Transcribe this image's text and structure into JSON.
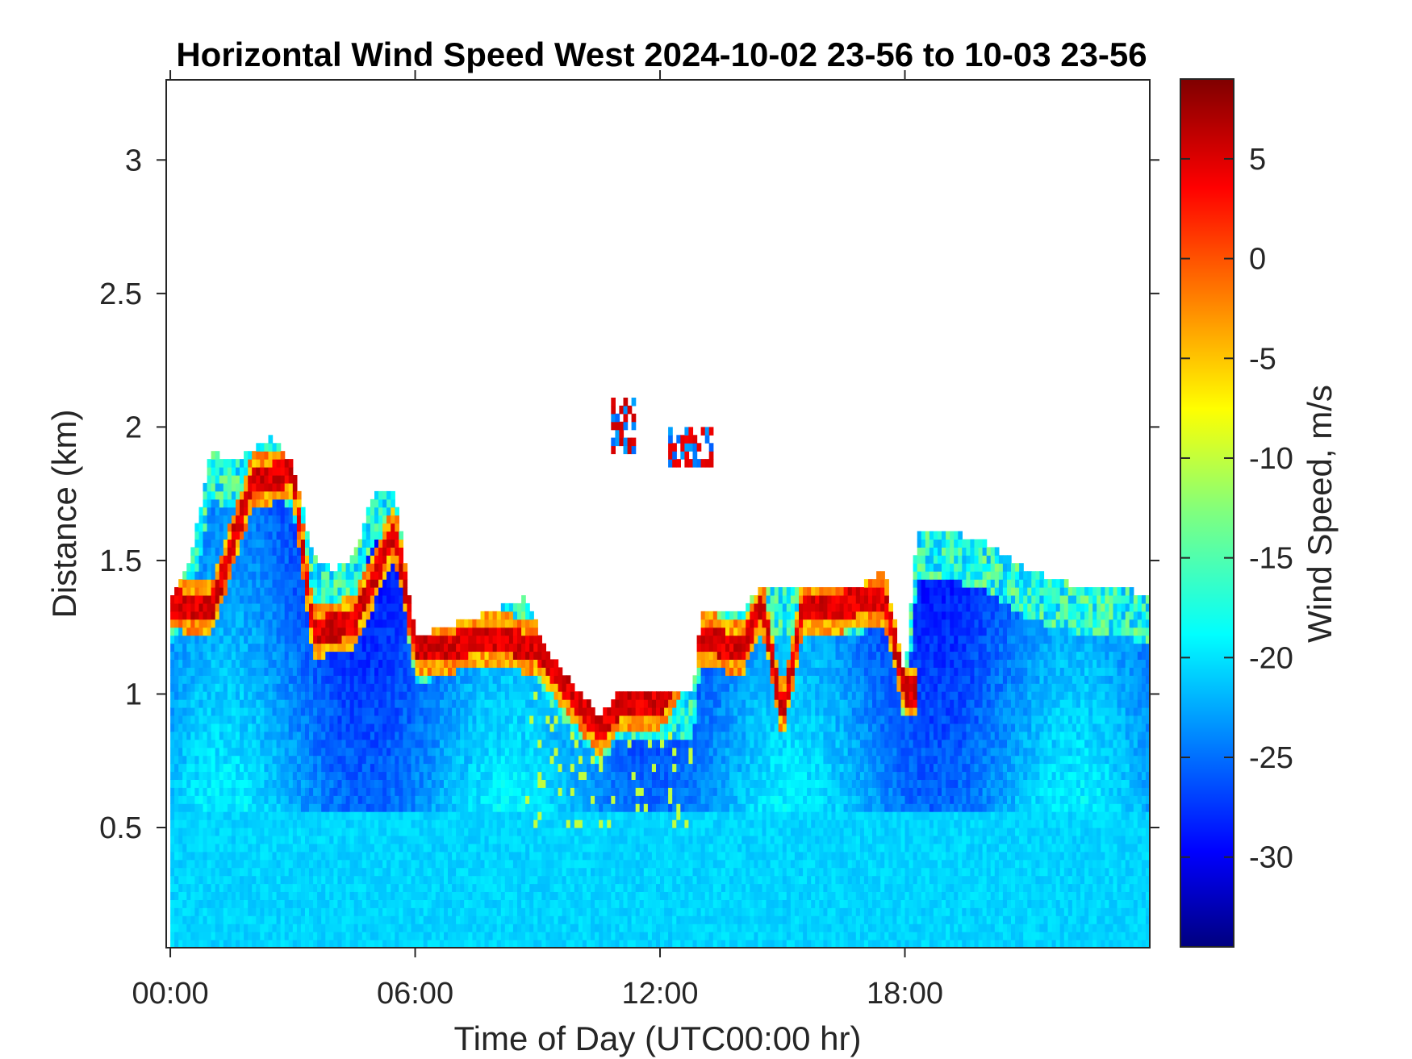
{
  "chart_data": {
    "type": "heatmap",
    "title": "Horizontal Wind Speed West 2024-10-02 23-56 to 10-03 23-56",
    "xlabel": "Time of Day (UTC00:00 hr)",
    "ylabel": "Distance (km)",
    "colorbar_label": "Wind Speed, m/s",
    "colormap": "jet",
    "x_unit": "hours",
    "xlim": [
      -0.1,
      24.0
    ],
    "ylim": [
      0.05,
      3.3
    ],
    "x_ticks": [
      0,
      6,
      12,
      18
    ],
    "x_tick_labels": [
      "00:00",
      "06:00",
      "12:00",
      "18:00"
    ],
    "y_ticks": [
      0.5,
      1,
      1.5,
      2,
      2.5,
      3
    ],
    "y_tick_labels": [
      "0.5",
      "1",
      "1.5",
      "2",
      "2.5",
      "3"
    ],
    "clim": [
      -34.5,
      9
    ],
    "colorbar_ticks": [
      5,
      0,
      -5,
      -10,
      -15,
      -20,
      -25,
      -30
    ],
    "colorbar_tick_labels": [
      "5",
      "0",
      "-5",
      "-10",
      "-15",
      "-20",
      "-25",
      "-30"
    ],
    "data_top_km": [
      [
        0.0,
        1.35
      ],
      [
        0.5,
        1.5
      ],
      [
        1.0,
        1.9
      ],
      [
        1.5,
        1.85
      ],
      [
        2.0,
        1.9
      ],
      [
        2.5,
        1.95
      ],
      [
        3.0,
        1.85
      ],
      [
        3.5,
        1.5
      ],
      [
        4.0,
        1.45
      ],
      [
        4.5,
        1.5
      ],
      [
        5.0,
        1.75
      ],
      [
        5.5,
        1.75
      ],
      [
        6.0,
        1.2
      ],
      [
        7.0,
        1.25
      ],
      [
        8.0,
        1.3
      ],
      [
        8.7,
        1.35
      ],
      [
        9.2,
        1.15
      ],
      [
        10.0,
        1.0
      ],
      [
        10.5,
        0.9
      ],
      [
        11.0,
        1.0
      ],
      [
        12.0,
        1.0
      ],
      [
        12.8,
        0.98
      ],
      [
        13.0,
        1.3
      ],
      [
        14.0,
        1.3
      ],
      [
        14.5,
        1.4
      ],
      [
        15.0,
        1.4
      ],
      [
        16.0,
        1.4
      ],
      [
        17.0,
        1.4
      ],
      [
        17.5,
        1.45
      ],
      [
        18.0,
        1.05
      ],
      [
        18.3,
        1.6
      ],
      [
        19.0,
        1.6
      ],
      [
        20.0,
        1.55
      ],
      [
        21.0,
        1.45
      ],
      [
        22.0,
        1.4
      ],
      [
        23.0,
        1.4
      ],
      [
        24.0,
        1.35
      ]
    ],
    "shear_layer_km": [
      [
        0.0,
        1.33
      ],
      [
        1.0,
        1.3
      ],
      [
        2.0,
        1.78
      ],
      [
        3.0,
        1.82
      ],
      [
        3.5,
        1.22
      ],
      [
        4.5,
        1.25
      ],
      [
        5.5,
        1.6
      ],
      [
        6.0,
        1.17
      ],
      [
        7.0,
        1.17
      ],
      [
        8.0,
        1.2
      ],
      [
        9.0,
        1.15
      ],
      [
        10.0,
        0.95
      ],
      [
        10.5,
        0.85
      ],
      [
        11.0,
        0.95
      ],
      [
        12.0,
        0.95
      ],
      [
        13.0,
        1.2
      ],
      [
        14.0,
        1.15
      ],
      [
        14.5,
        1.33
      ],
      [
        15.0,
        0.9
      ],
      [
        15.5,
        1.32
      ],
      [
        16.5,
        1.32
      ],
      [
        17.5,
        1.35
      ],
      [
        18.0,
        1.0
      ]
    ],
    "aloft_patches": [
      {
        "x": [
          10.8,
          11.3
        ],
        "y": [
          1.9,
          2.1
        ],
        "peak": 3
      },
      {
        "x": [
          12.2,
          13.2
        ],
        "y": [
          1.85,
          2.0
        ],
        "peak": 2
      }
    ],
    "surface_speed_ms": -20,
    "minimum_speed_ms": -30
  }
}
